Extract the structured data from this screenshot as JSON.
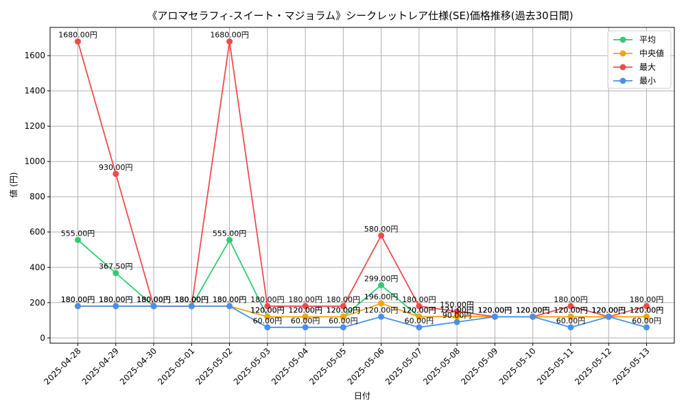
{
  "chart_data": {
    "type": "line",
    "title": "《アロマセラフィ-スイート・マジョラム》シークレットレア仕様(SE)価格推移(過去30日間)",
    "xlabel": "日付",
    "ylabel": "値 (円)",
    "ylim": [
      -30,
      1760
    ],
    "yticks": [
      0,
      200,
      400,
      600,
      800,
      1000,
      1200,
      1400,
      1600
    ],
    "grid": true,
    "legend_position": "top-right",
    "label_suffix": "円",
    "categories": [
      "2025-04-28",
      "2025-04-29",
      "2025-04-30",
      "2025-05-01",
      "2025-05-02",
      "2025-05-03",
      "2025-05-04",
      "2025-05-05",
      "2025-05-06",
      "2025-05-07",
      "2025-05-08",
      "2025-05-09",
      "2025-05-10",
      "2025-05-11",
      "2025-05-12",
      "2025-05-13"
    ],
    "series": [
      {
        "name": "平均",
        "color": "#2ecc71",
        "values": [
          555,
          367.5,
          180,
          180,
          555,
          120,
          120,
          120,
          299,
          120,
          121,
          120,
          120,
          120,
          120,
          120
        ]
      },
      {
        "name": "中央値",
        "color": "#f5a30a",
        "values": [
          180,
          180,
          180,
          180,
          180,
          120,
          120,
          120,
          196,
          120,
          121,
          120,
          120,
          120,
          120,
          120
        ]
      },
      {
        "name": "最大",
        "color": "#ef4b4b",
        "values": [
          1680,
          930,
          180,
          180,
          1680,
          180,
          180,
          180,
          580,
          180,
          150,
          120,
          120,
          180,
          120,
          180
        ]
      },
      {
        "name": "最小",
        "color": "#4a90e8",
        "values": [
          180,
          180,
          180,
          180,
          180,
          60,
          60,
          60,
          120,
          60,
          90,
          120,
          120,
          60,
          120,
          60
        ]
      }
    ],
    "data_labels": [
      {
        "series": "最大",
        "index": 0,
        "text": "1680.00円"
      },
      {
        "series": "最大",
        "index": 1,
        "text": "930.00円"
      },
      {
        "series": "最大",
        "index": 2,
        "text": "180.00円"
      },
      {
        "series": "最大",
        "index": 3,
        "text": "180.00円"
      },
      {
        "series": "最大",
        "index": 4,
        "text": "1680.00円"
      },
      {
        "series": "最大",
        "index": 5,
        "text": "180.00円"
      },
      {
        "series": "最大",
        "index": 6,
        "text": "180.00円"
      },
      {
        "series": "最大",
        "index": 7,
        "text": "180.00円"
      },
      {
        "series": "最大",
        "index": 8,
        "text": "580.00円"
      },
      {
        "series": "最大",
        "index": 9,
        "text": "180.00円"
      },
      {
        "series": "最大",
        "index": 10,
        "text": "150.00円"
      },
      {
        "series": "最大",
        "index": 11,
        "text": "120.00円"
      },
      {
        "series": "最大",
        "index": 12,
        "text": "120.00円"
      },
      {
        "series": "最大",
        "index": 13,
        "text": "180.00円"
      },
      {
        "series": "最大",
        "index": 14,
        "text": "120.00円"
      },
      {
        "series": "最大",
        "index": 15,
        "text": "180.00円"
      },
      {
        "series": "平均",
        "index": 0,
        "text": "555.00円"
      },
      {
        "series": "平均",
        "index": 1,
        "text": "367.50円"
      },
      {
        "series": "平均",
        "index": 2,
        "text": "180.00円"
      },
      {
        "series": "平均",
        "index": 3,
        "text": "180.00円"
      },
      {
        "series": "平均",
        "index": 4,
        "text": "555.00円"
      },
      {
        "series": "平均",
        "index": 5,
        "text": "120.00円"
      },
      {
        "series": "平均",
        "index": 6,
        "text": "120.00円"
      },
      {
        "series": "平均",
        "index": 7,
        "text": "120.00円"
      },
      {
        "series": "平均",
        "index": 8,
        "text": "299.00円"
      },
      {
        "series": "平均",
        "index": 9,
        "text": "120.00円"
      },
      {
        "series": "平均",
        "index": 10,
        "text": "121.00円"
      },
      {
        "series": "平均",
        "index": 11,
        "text": "120.00円"
      },
      {
        "series": "平均",
        "index": 12,
        "text": "120.00円"
      },
      {
        "series": "平均",
        "index": 13,
        "text": "120.00円"
      },
      {
        "series": "平均",
        "index": 14,
        "text": "120.00円"
      },
      {
        "series": "平均",
        "index": 15,
        "text": "120.00円"
      },
      {
        "series": "中央値",
        "index": 0,
        "text": "180.00円"
      },
      {
        "series": "中央値",
        "index": 1,
        "text": "180.00円"
      },
      {
        "series": "中央値",
        "index": 2,
        "text": "180.00円"
      },
      {
        "series": "中央値",
        "index": 3,
        "text": "180.00円"
      },
      {
        "series": "中央値",
        "index": 4,
        "text": "180.00円"
      },
      {
        "series": "中央値",
        "index": 5,
        "text": "120.00円"
      },
      {
        "series": "中央値",
        "index": 6,
        "text": "120.00円"
      },
      {
        "series": "中央値",
        "index": 7,
        "text": "120.00円"
      },
      {
        "series": "中央値",
        "index": 8,
        "text": "196.00円"
      },
      {
        "series": "中央値",
        "index": 9,
        "text": "120.00円"
      },
      {
        "series": "中央値",
        "index": 10,
        "text": "121.00円"
      },
      {
        "series": "中央値",
        "index": 11,
        "text": "120.00円"
      },
      {
        "series": "中央値",
        "index": 12,
        "text": "120.00円"
      },
      {
        "series": "中央値",
        "index": 13,
        "text": "120.00円"
      },
      {
        "series": "中央値",
        "index": 14,
        "text": "120.00円"
      },
      {
        "series": "中央値",
        "index": 15,
        "text": "120.00円"
      },
      {
        "series": "最小",
        "index": 0,
        "text": "180.00円"
      },
      {
        "series": "最小",
        "index": 1,
        "text": "180.00円"
      },
      {
        "series": "最小",
        "index": 2,
        "text": "180.00円"
      },
      {
        "series": "最小",
        "index": 3,
        "text": "180.00円"
      },
      {
        "series": "最小",
        "index": 4,
        "text": "180.00円"
      },
      {
        "series": "最小",
        "index": 5,
        "text": "60.00円"
      },
      {
        "series": "最小",
        "index": 6,
        "text": "60.00円"
      },
      {
        "series": "最小",
        "index": 7,
        "text": "60.00円"
      },
      {
        "series": "最小",
        "index": 8,
        "text": "120.00円"
      },
      {
        "series": "最小",
        "index": 9,
        "text": "60.00円"
      },
      {
        "series": "最小",
        "index": 10,
        "text": "90.00円"
      },
      {
        "series": "最小",
        "index": 11,
        "text": "120.00円"
      },
      {
        "series": "最小",
        "index": 12,
        "text": "120.00円"
      },
      {
        "series": "最小",
        "index": 13,
        "text": "60.00円"
      },
      {
        "series": "最小",
        "index": 14,
        "text": "120.00円"
      },
      {
        "series": "最小",
        "index": 15,
        "text": "60.00円"
      }
    ]
  }
}
